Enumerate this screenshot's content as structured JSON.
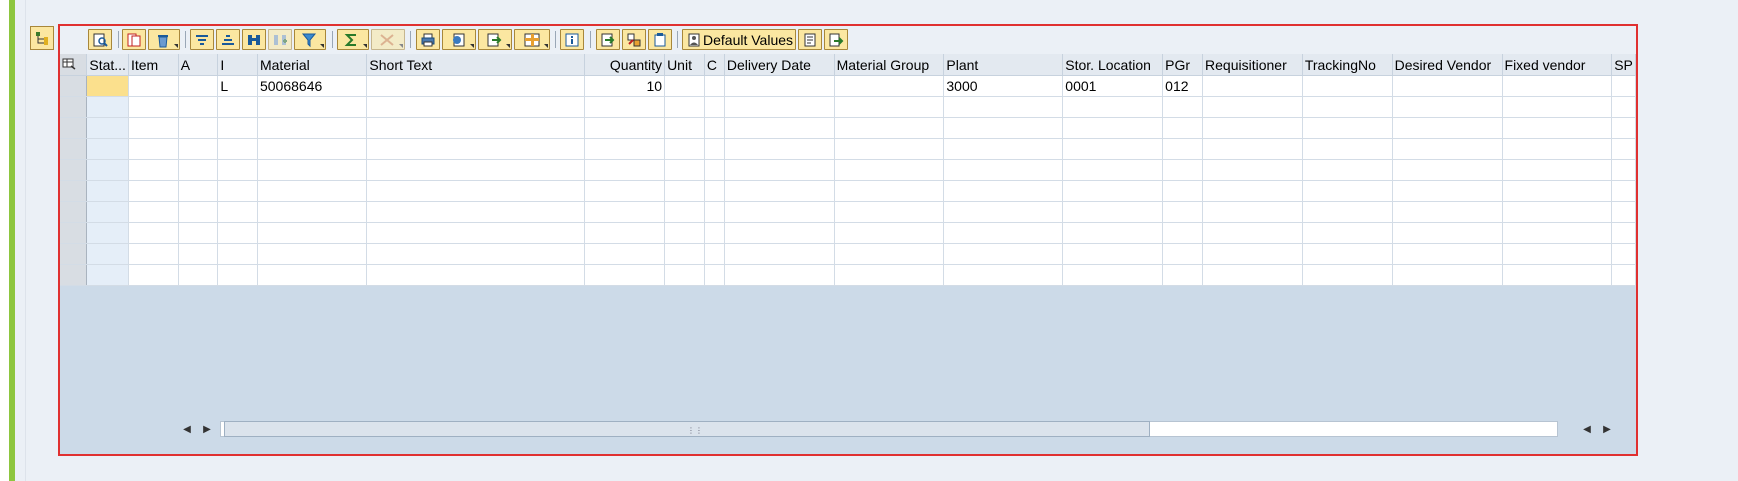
{
  "toolbar": {
    "default_values_label": "Default Values",
    "icons": [
      "details-icon",
      "delete-row-icon",
      "trash-icon",
      "sort-ascending-icon",
      "filter-icon",
      "find-icon",
      "find-next-icon",
      "filter-funnel-icon",
      "sum-icon",
      "subtotal-icon",
      "print-icon",
      "views-icon",
      "export-icon",
      "layout-icon",
      "info-icon",
      "copy-icon",
      "split-icon",
      "paste-icon",
      "default-values-icon",
      "document-icon",
      "transfer-icon"
    ]
  },
  "grid": {
    "columns": [
      "Stat...",
      "Item",
      "A",
      "I",
      "Material",
      "Short Text",
      "Quantity",
      "Unit",
      "C",
      "Delivery Date",
      "Material Group",
      "Plant",
      "Stor. Location",
      "PGr",
      "Requisitioner",
      "TrackingNo",
      "Desired Vendor",
      "Fixed vendor",
      "SP"
    ],
    "rows": [
      [
        "",
        "",
        "",
        "L",
        "50068646",
        "",
        "10",
        "",
        "",
        "",
        "",
        "3000",
        "0001",
        "012",
        "",
        "",
        "",
        "",
        ""
      ],
      [
        "",
        "",
        "",
        "",
        "",
        "",
        "",
        "",
        "",
        "",
        "",
        "",
        "",
        "",
        "",
        "",
        "",
        "",
        ""
      ],
      [
        "",
        "",
        "",
        "",
        "",
        "",
        "",
        "",
        "",
        "",
        "",
        "",
        "",
        "",
        "",
        "",
        "",
        "",
        ""
      ],
      [
        "",
        "",
        "",
        "",
        "",
        "",
        "",
        "",
        "",
        "",
        "",
        "",
        "",
        "",
        "",
        "",
        "",
        "",
        ""
      ],
      [
        "",
        "",
        "",
        "",
        "",
        "",
        "",
        "",
        "",
        "",
        "",
        "",
        "",
        "",
        "",
        "",
        "",
        "",
        ""
      ],
      [
        "",
        "",
        "",
        "",
        "",
        "",
        "",
        "",
        "",
        "",
        "",
        "",
        "",
        "",
        "",
        "",
        "",
        "",
        ""
      ],
      [
        "",
        "",
        "",
        "",
        "",
        "",
        "",
        "",
        "",
        "",
        "",
        "",
        "",
        "",
        "",
        "",
        "",
        "",
        ""
      ],
      [
        "",
        "",
        "",
        "",
        "",
        "",
        "",
        "",
        "",
        "",
        "",
        "",
        "",
        "",
        "",
        "",
        "",
        "",
        ""
      ],
      [
        "",
        "",
        "",
        "",
        "",
        "",
        "",
        "",
        "",
        "",
        "",
        "",
        "",
        "",
        "",
        "",
        "",
        "",
        ""
      ],
      [
        "",
        "",
        "",
        "",
        "",
        "",
        "",
        "",
        "",
        "",
        "",
        "",
        "",
        "",
        "",
        "",
        "",
        "",
        ""
      ]
    ]
  }
}
